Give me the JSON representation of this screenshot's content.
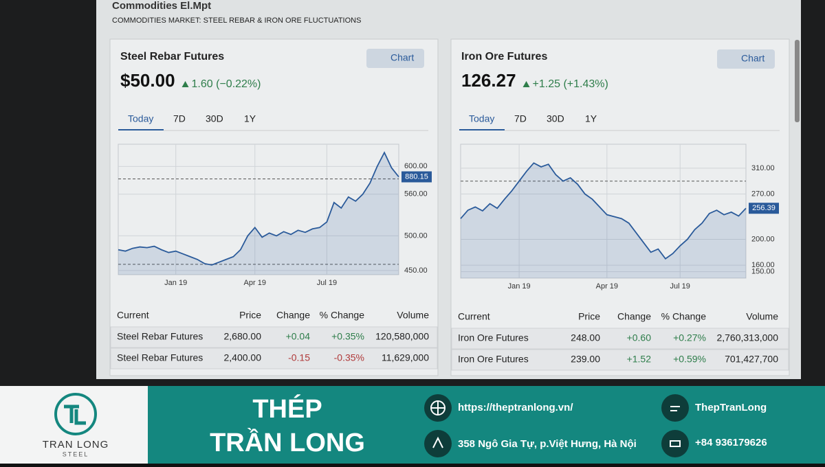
{
  "header": {
    "title": "Commodities El.Mpt",
    "subtitle": "COMMODITIES MARKET: STEEL REBAR & IRON ORE FLUCTUATIONS"
  },
  "panels": [
    {
      "name": "Steel Rebar Futures",
      "button": "Chart",
      "price": "$50.00",
      "change": "1.60 (−0.22%)",
      "tabs": [
        "Today",
        "7D",
        "30D",
        "1Y"
      ],
      "current_tag": "880.15",
      "table": {
        "columns": [
          "Current",
          "Price",
          "Change",
          "% Change",
          "Volume"
        ],
        "rows": [
          [
            "Steel Rebar Futures",
            "2,680.00",
            "+0.04",
            "+0.35%",
            "120,580,000"
          ],
          [
            "Steel Rebar Futures",
            "2,400.00",
            "-0.15",
            "-0.35%",
            "11,629,000"
          ]
        ]
      }
    },
    {
      "name": "Iron Ore Futures",
      "button": "Chart",
      "price": "126.27",
      "change": "+1.25 (+1.43%)",
      "tabs": [
        "Today",
        "7D",
        "30D",
        "1Y"
      ],
      "current_tag": "256.39",
      "table": {
        "columns": [
          "Current",
          "Price",
          "Change",
          "% Change",
          "Volume"
        ],
        "rows": [
          [
            "Iron Ore Futures",
            "248.00",
            "+0.60",
            "+0.27%",
            "2,760,313,000"
          ],
          [
            "Iron Ore Futures",
            "239.00",
            "+1.52",
            "+0.59%",
            "701,427,700"
          ]
        ]
      }
    }
  ],
  "chart_data": [
    {
      "type": "line",
      "color": "#2a5a9a",
      "grid": true,
      "categories": [
        null,
        null,
        null,
        null,
        null,
        null,
        null,
        null,
        "Jan 19",
        null,
        null,
        null,
        null,
        null,
        null,
        null,
        null,
        null,
        null,
        "Apr 19",
        null,
        null,
        null,
        null,
        null,
        null,
        null,
        null,
        null,
        "Jul 19",
        null,
        null,
        null,
        null,
        null,
        null,
        null,
        null,
        null,
        null
      ],
      "values": [
        480,
        478,
        482,
        484,
        483,
        485,
        480,
        476,
        478,
        474,
        470,
        466,
        460,
        458,
        462,
        466,
        470,
        480,
        500,
        512,
        498,
        504,
        500,
        506,
        502,
        508,
        505,
        510,
        512,
        520,
        548,
        540,
        556,
        550,
        560,
        576,
        600,
        620,
        598,
        585
      ],
      "ylim": [
        444,
        632
      ],
      "yticks": [
        {
          "value": 600,
          "label": "600.00"
        },
        {
          "value": 560,
          "label": "560.00"
        },
        {
          "value": 500,
          "label": "500.00"
        },
        {
          "value": 450,
          "label": "450.00"
        }
      ],
      "reference_lines": [
        582,
        459
      ]
    },
    {
      "type": "line",
      "color": "#2a5a9a",
      "grid": true,
      "categories": [
        null,
        null,
        null,
        null,
        null,
        null,
        null,
        null,
        "Jan 19",
        null,
        null,
        null,
        null,
        null,
        null,
        null,
        null,
        null,
        null,
        null,
        "Apr 19",
        null,
        null,
        null,
        null,
        null,
        null,
        null,
        null,
        null,
        "Jul 19",
        null,
        null,
        null,
        null,
        null,
        null,
        null,
        null,
        null
      ],
      "values": [
        232,
        245,
        250,
        244,
        255,
        248,
        262,
        275,
        290,
        305,
        318,
        312,
        316,
        300,
        290,
        295,
        285,
        270,
        262,
        250,
        238,
        235,
        232,
        225,
        210,
        195,
        180,
        185,
        170,
        178,
        190,
        200,
        215,
        225,
        240,
        245,
        238,
        242,
        236,
        248
      ],
      "ylim": [
        140,
        347
      ],
      "yticks": [
        {
          "value": 310,
          "label": "310.00"
        },
        {
          "value": 270,
          "label": "270.00"
        },
        {
          "value": 200,
          "label": "200.00"
        },
        {
          "value": 160,
          "label": "160.00"
        },
        {
          "value": 150,
          "label": "150.00"
        }
      ],
      "reference_lines": [
        290
      ]
    }
  ],
  "footer": {
    "brand": "THÉP",
    "brand2": "TRẦN LONG",
    "logo_text": "TRAN LONG",
    "logo_sub": "STEEL",
    "website": "https://theptranlong.vn/",
    "address": "358 Ngô Gia Tự, p.Việt Hưng, Hà Nội",
    "social": "ThepTranLong",
    "phone": "+84 936179626"
  }
}
